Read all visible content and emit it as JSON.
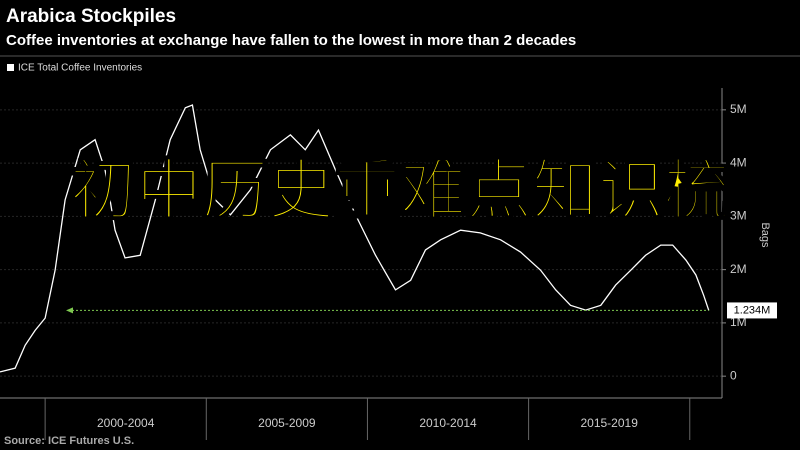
{
  "chart_data": {
    "type": "line",
    "title": "Arabica Stockpiles",
    "subtitle": "Coffee inventories at exchange have fallen to the lowest in more than 2 decades",
    "source": "Source: ICE Futures U.S.",
    "y_label": "Bags",
    "x": [
      1998.6,
      1999.07,
      1999.38,
      1999.69,
      2000.0,
      2000.31,
      2000.62,
      2001.09,
      2001.55,
      2001.86,
      2002.17,
      2002.48,
      2002.95,
      2003.42,
      2003.88,
      2004.35,
      2004.57,
      2004.81,
      2005.28,
      2005.75,
      2006.37,
      2006.99,
      2007.61,
      2008.07,
      2008.48,
      2009.01,
      2009.63,
      2010.25,
      2010.87,
      2011.34,
      2011.8,
      2012.27,
      2012.89,
      2013.5,
      2014.13,
      2014.75,
      2015.37,
      2015.84,
      2016.3,
      2016.77,
      2017.24,
      2017.7,
      2018.17,
      2018.63,
      2019.1,
      2019.47,
      2019.88,
      2020.19,
      2020.43,
      2020.59
    ],
    "series": [
      {
        "name": "ICE Total Coffee Inventories",
        "color": "#ffffff",
        "values": [
          80000,
          150000,
          580000,
          860000,
          1090000,
          1990000,
          3310000,
          4250000,
          4440000,
          3870000,
          2740000,
          2220000,
          2270000,
          3310000,
          4440000,
          5040000,
          5090000,
          4250000,
          3310000,
          3030000,
          3500000,
          4250000,
          4530000,
          4250000,
          4620000,
          3870000,
          3030000,
          2270000,
          1620000,
          1800000,
          2370000,
          2560000,
          2740000,
          2690000,
          2560000,
          2330000,
          1990000,
          1620000,
          1330000,
          1240000,
          1330000,
          1710000,
          1990000,
          2270000,
          2460000,
          2460000,
          2180000,
          1900000,
          1520000,
          1234000
        ],
        "value_labels": [
          null,
          null,
          null,
          null,
          null,
          null,
          null,
          null,
          null,
          null,
          null,
          null,
          null,
          null,
          null,
          null,
          null,
          null,
          null,
          null,
          null,
          null,
          null,
          null,
          null,
          null,
          null,
          null,
          null,
          null,
          null,
          null,
          null,
          null,
          null,
          null,
          null,
          null,
          null,
          null,
          null,
          null,
          null,
          null,
          null,
          null,
          null,
          null,
          null,
          "1.234M"
        ]
      }
    ],
    "last_value_color": "#7ec850",
    "xlim": [
      1998.6,
      2021
    ],
    "x_periods": [
      {
        "label": "2000-2004",
        "start": 2000,
        "end": 2005
      },
      {
        "label": "2005-2009",
        "start": 2005,
        "end": 2010
      },
      {
        "label": "2010-2014",
        "start": 2010,
        "end": 2015
      },
      {
        "label": "2015-2019",
        "start": 2015,
        "end": 2020
      }
    ],
    "ylim": [
      -410000,
      5410000
    ],
    "yticks": [
      0,
      {
        "value": 1000000,
        "label": "1M"
      },
      {
        "value": 2000000,
        "label": "2M"
      },
      {
        "value": 3000000,
        "label": "3M"
      },
      {
        "value": 4000000,
        "label": "4M"
      },
      {
        "value": 5000000,
        "label": "5M"
      }
    ],
    "grid": true
  },
  "overlay_text": "初中历史重难点知识梳"
}
